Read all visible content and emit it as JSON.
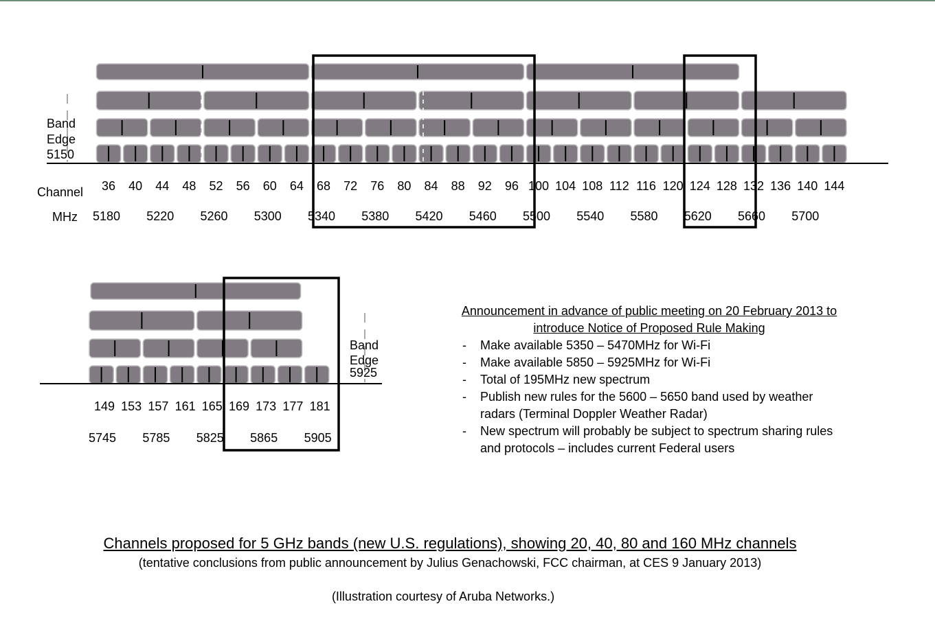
{
  "upper_band": {
    "band_edge_label": [
      "Band",
      "Edge"
    ],
    "band_edge_freq": "5150",
    "channel_label": "Channel",
    "mhz_label": "MHz",
    "channels": [
      "36",
      "40",
      "44",
      "48",
      "52",
      "56",
      "60",
      "64",
      "68",
      "72",
      "76",
      "80",
      "84",
      "88",
      "92",
      "96",
      "100",
      "104",
      "108",
      "112",
      "116",
      "120",
      "124",
      "128",
      "132",
      "136",
      "140",
      "144"
    ],
    "frequencies": [
      "5180",
      "5220",
      "5260",
      "5300",
      "5340",
      "5380",
      "5420",
      "5460",
      "5500",
      "5540",
      "5580",
      "5620",
      "5660",
      "5700"
    ]
  },
  "lower_band": {
    "band_edge_label": [
      "Band",
      "Edge"
    ],
    "band_edge_freq": "5925",
    "channels": [
      "149",
      "153",
      "157",
      "161",
      "165",
      "169",
      "173",
      "177",
      "181"
    ],
    "frequencies": [
      "5745",
      "5785",
      "5825",
      "5865",
      "5905"
    ]
  },
  "announcement": {
    "title": "Announcement in advance of public meeting on 20 February 2013 to introduce Notice of Proposed Rule Making",
    "items": [
      "Make available 5350 – 5470MHz for Wi-Fi",
      "Make available 5850 – 5925MHz for Wi-Fi",
      "Total of 195MHz new spectrum",
      "Publish new rules for the 5600 – 5650 band used by weather radars (Terminal Doppler Weather Radar)",
      "New spectrum will probably be subject to spectrum sharing rules and protocols – includes current Federal users"
    ]
  },
  "caption": {
    "title": "Channels proposed for 5 GHz  bands (new U.S. regulations), showing 20, 40, 80 and 160 MHz channels",
    "subtitle": "(tentative conclusions from public announcement by Julius Genachowski, FCC chairman, at CES 9 January 2013)",
    "credit": "(Illustration courtesy of Aruba Networks.)"
  },
  "colors": {
    "channel_block": "#7f7b80",
    "block_border": "#bfbcbf",
    "highlight_box": "#000000"
  }
}
